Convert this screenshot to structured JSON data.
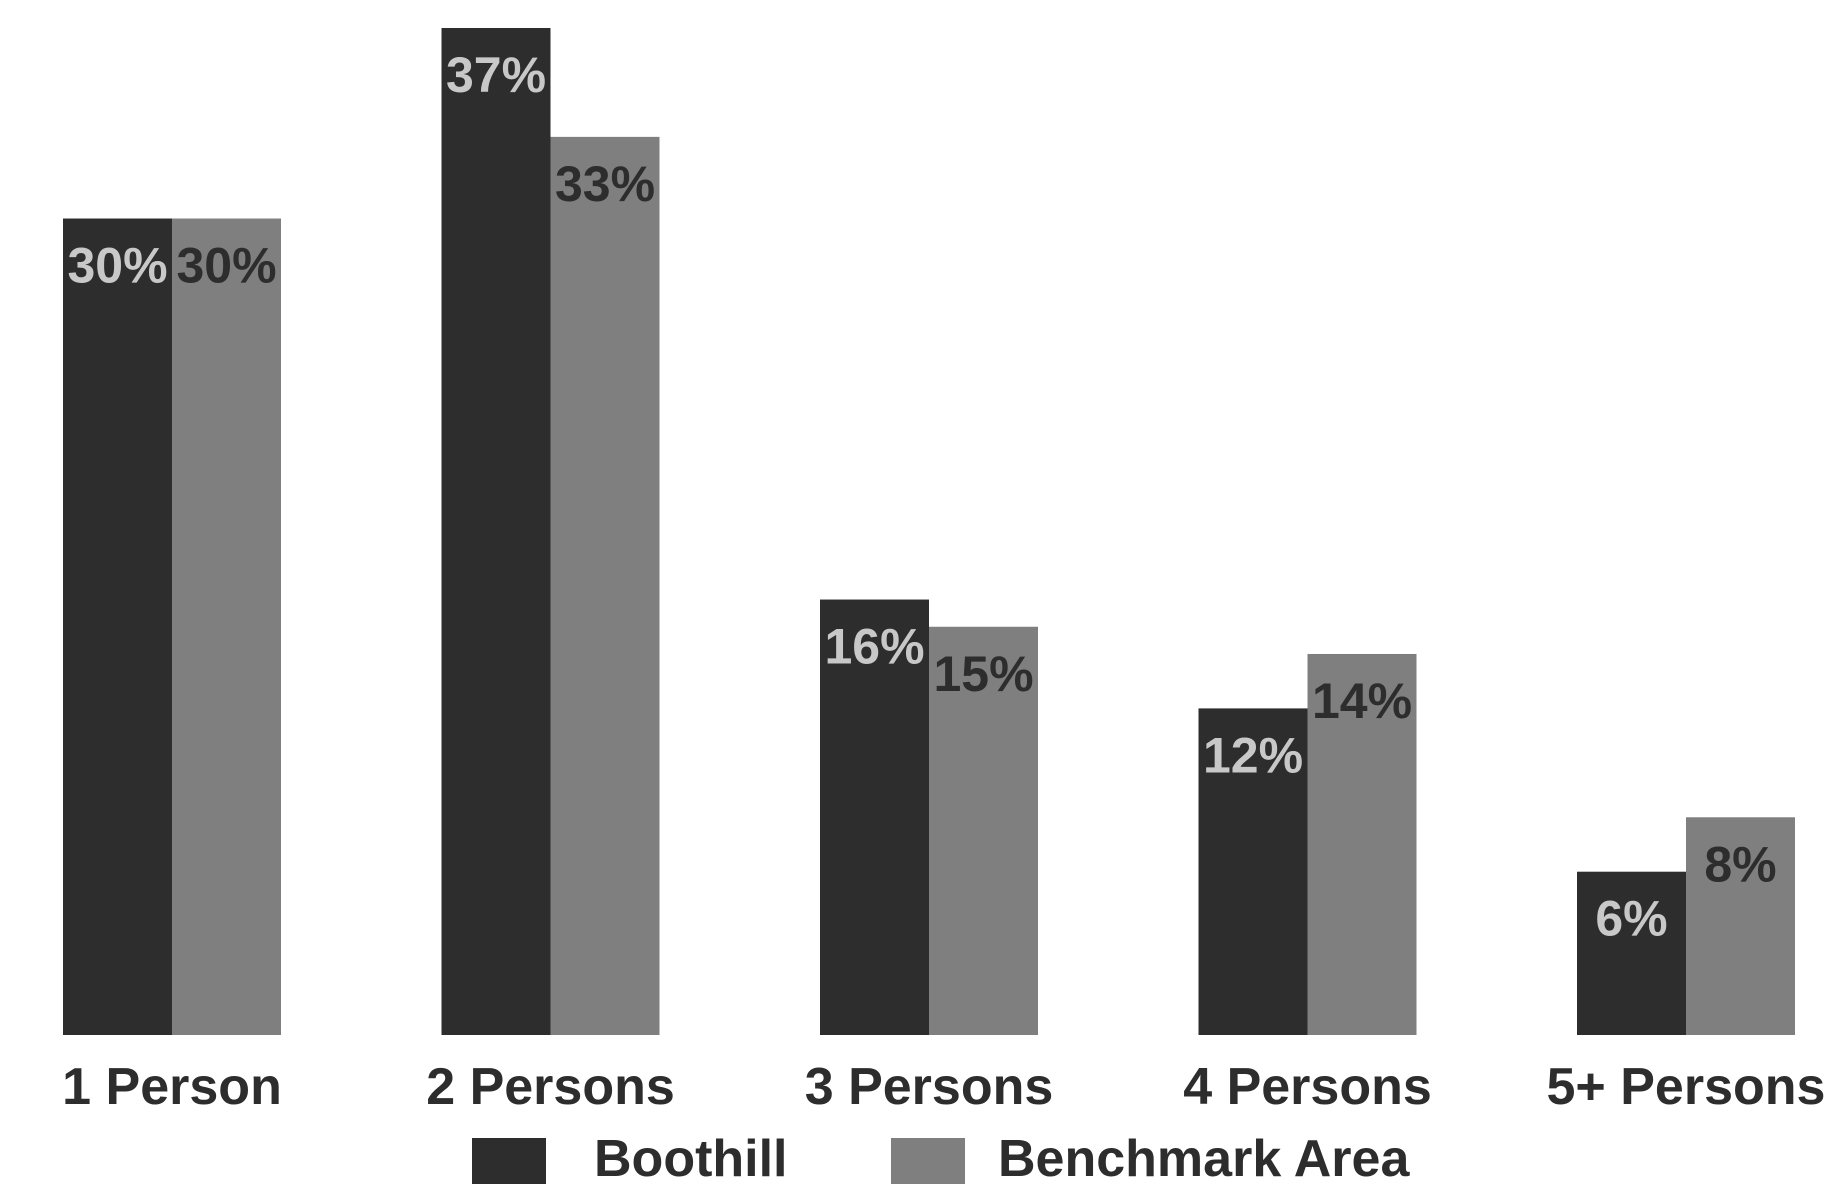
{
  "chart_data": {
    "type": "bar",
    "categories": [
      "1 Person",
      "2 Persons",
      "3 Persons",
      "4 Persons",
      "5+ Persons"
    ],
    "series": [
      {
        "name": "Boothill",
        "values": [
          30,
          37,
          16,
          12,
          6
        ],
        "labels": [
          "30%",
          "37%",
          "16%",
          "12%",
          "6%"
        ],
        "color": "#2d2d2d",
        "label_color": "#c8c8c8"
      },
      {
        "name": "Benchmark Area",
        "values": [
          30,
          33,
          15,
          14,
          8
        ],
        "labels": [
          "30%",
          "33%",
          "15%",
          "14%",
          "8%"
        ],
        "color": "#7f7f7f",
        "label_color": "#2d2d2d"
      }
    ],
    "title": "",
    "xlabel": "",
    "ylabel": "",
    "ylim": [
      0,
      37
    ],
    "grid": false,
    "legend_position": "bottom-center"
  }
}
